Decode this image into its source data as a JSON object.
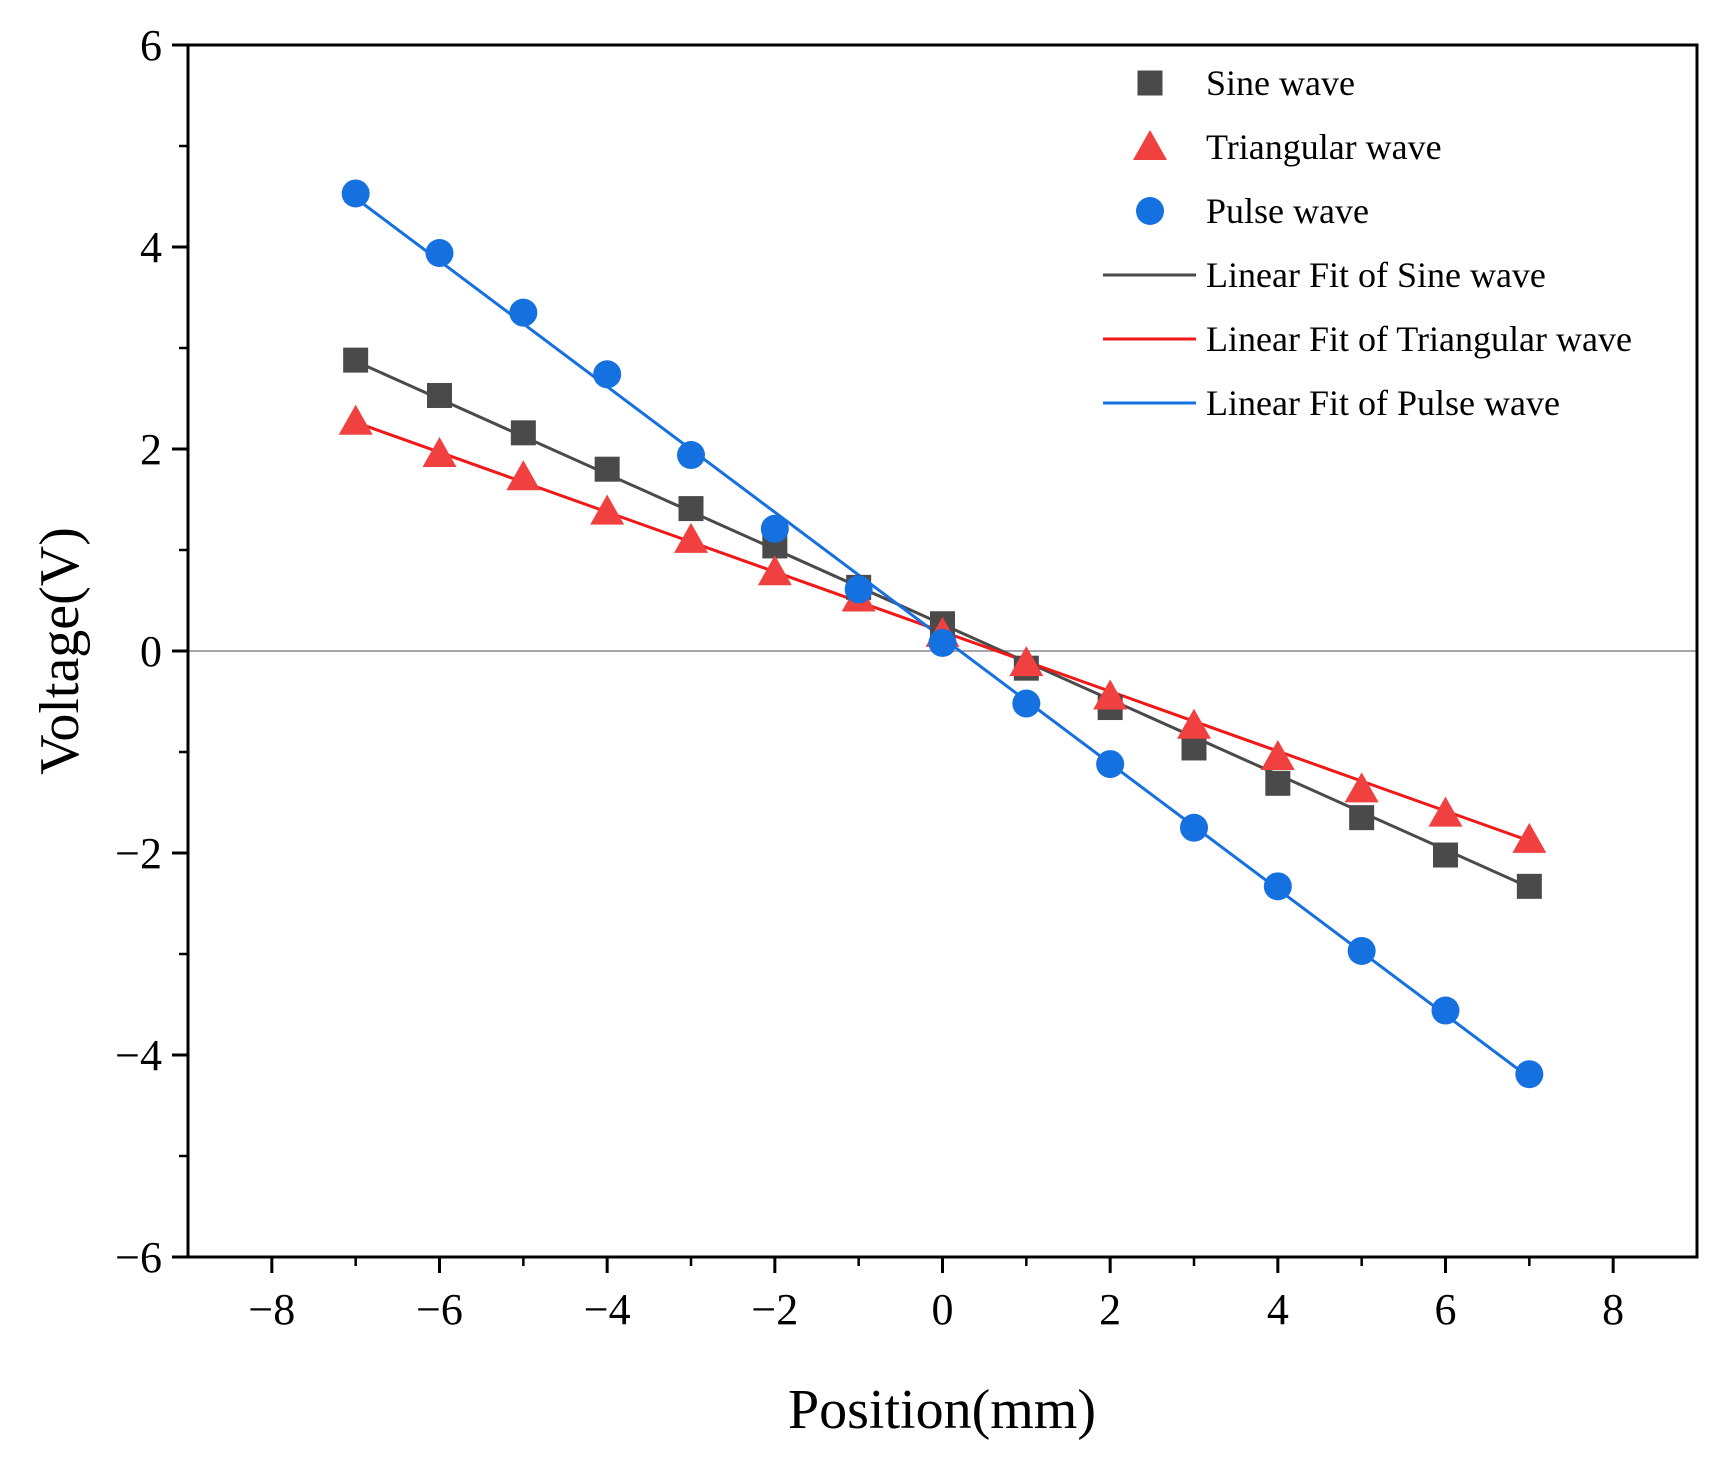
{
  "chart_data": {
    "type": "scatter",
    "title": "",
    "xlabel": "Position(mm)",
    "ylabel": "Voltage(V)",
    "xlim": [
      -9,
      9
    ],
    "ylim": [
      -6,
      6
    ],
    "xticks": [
      -8,
      -6,
      -4,
      -2,
      0,
      2,
      4,
      6,
      8
    ],
    "xtick_labels": [
      "−8",
      "−6",
      "−4",
      "−2",
      "0",
      "2",
      "4",
      "6",
      "8"
    ],
    "yticks": [
      -6,
      -4,
      -2,
      0,
      2,
      4,
      6
    ],
    "ytick_labels": [
      "−6",
      "−4",
      "−2",
      "0",
      "2",
      "4",
      "6"
    ],
    "grid": false,
    "zero_line": true,
    "legend_position": "top-right",
    "x": [
      -7,
      -6,
      -5,
      -4,
      -3,
      -2,
      -1,
      0,
      1,
      2,
      3,
      4,
      5,
      6,
      7
    ],
    "series": [
      {
        "name": "Sine wave",
        "marker": "square",
        "color": "#4a4a4a",
        "values": [
          2.88,
          2.53,
          2.16,
          1.8,
          1.41,
          1.04,
          0.63,
          0.27,
          -0.17,
          -0.56,
          -0.96,
          -1.31,
          -1.65,
          -2.02,
          -2.33
        ]
      },
      {
        "name": "Triangular wave",
        "marker": "triangle",
        "color": "#f04040",
        "values": [
          2.27,
          1.95,
          1.72,
          1.38,
          1.1,
          0.78,
          0.52,
          0.17,
          -0.12,
          -0.45,
          -0.74,
          -1.05,
          -1.37,
          -1.61,
          -1.87
        ]
      },
      {
        "name": "Pulse wave",
        "marker": "circle",
        "color": "#1570e0",
        "values": [
          4.53,
          3.94,
          3.35,
          2.74,
          1.94,
          1.21,
          0.61,
          0.08,
          -0.52,
          -1.12,
          -1.75,
          -2.33,
          -2.97,
          -3.56,
          -4.19
        ]
      }
    ],
    "fits": [
      {
        "name": "Linear Fit of Sine wave",
        "color": "#4a4a4a",
        "slope": -0.372,
        "intercept": 0.264
      },
      {
        "name": "Linear Fit of Triangular wave",
        "color": "#f01818",
        "slope": -0.296,
        "intercept": 0.192
      },
      {
        "name": "Linear Fit of Pulse wave",
        "color": "#1570e0",
        "slope": -0.622,
        "intercept": 0.13
      }
    ]
  }
}
